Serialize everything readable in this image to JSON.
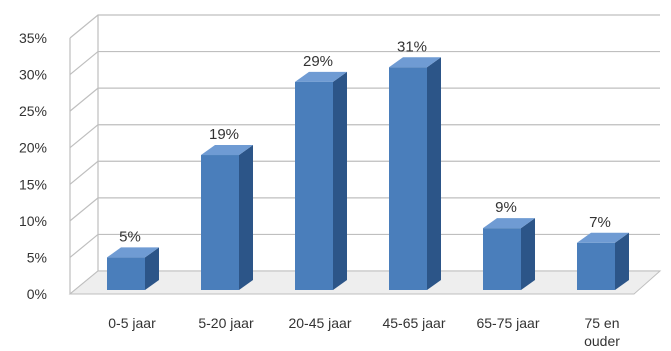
{
  "chart_data": {
    "type": "bar",
    "style": "3d-column",
    "categories": [
      "0-5 jaar",
      "5-20 jaar",
      "20-45 jaar",
      "45-65 jaar",
      "65-75 jaar",
      "75 en ouder"
    ],
    "values": [
      5,
      19,
      29,
      31,
      9,
      7
    ],
    "data_labels": [
      "5%",
      "19%",
      "29%",
      "31%",
      "9%",
      "7%"
    ],
    "y_ticks": [
      0,
      5,
      10,
      15,
      20,
      25,
      30,
      35
    ],
    "y_tick_labels": [
      "0%",
      "5%",
      "10%",
      "15%",
      "20%",
      "25%",
      "30%",
      "35%"
    ],
    "ylim": [
      0,
      35
    ],
    "grid": true,
    "legend": "none",
    "colors": {
      "bar_front": "#4a7ebb",
      "bar_side": "#2c5588",
      "bar_top": "#6f9bd3",
      "grid": "#bfbfbf",
      "axis_text": "#333333"
    }
  }
}
